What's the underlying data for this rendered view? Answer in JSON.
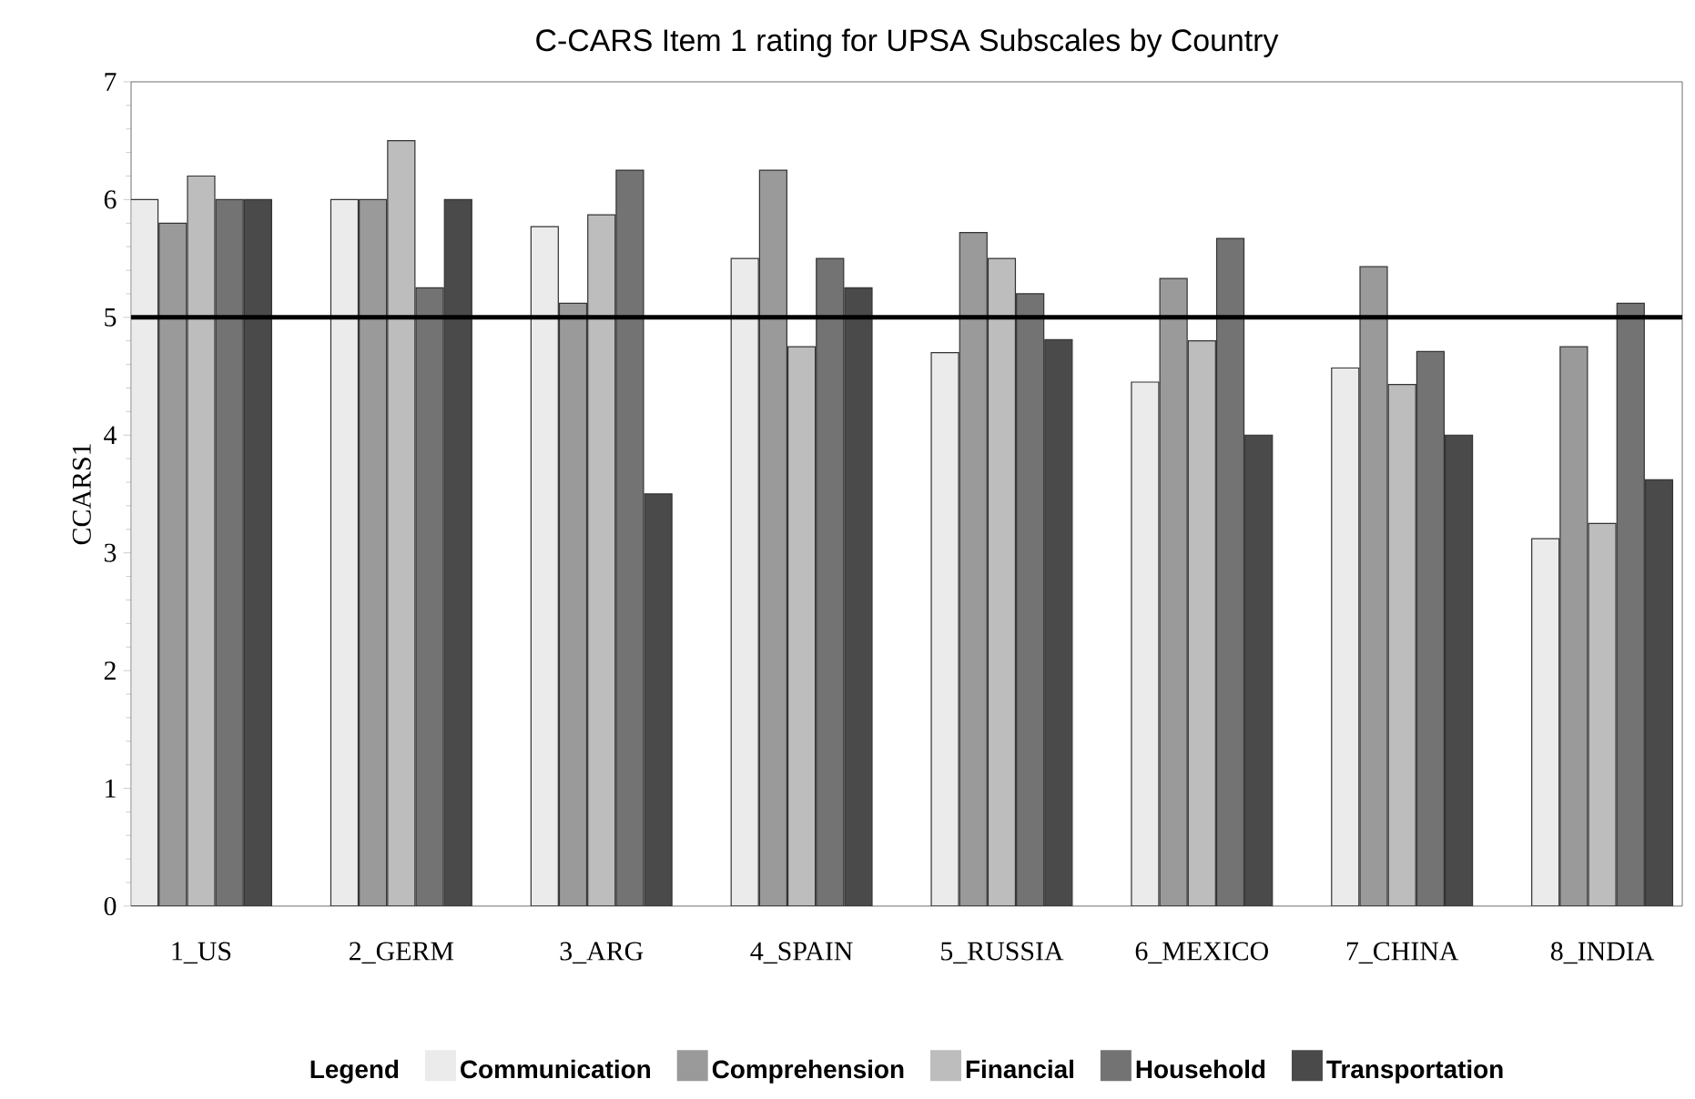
{
  "chart_data": {
    "type": "bar",
    "title": "C-CARS Item 1 rating for UPSA Subscales by Country",
    "ylabel": "CCARS1",
    "legend_title": "Legend",
    "legend": "bottom",
    "categories": [
      "1_US",
      "2_GERM",
      "3_ARG",
      "4_SPAIN",
      "5_RUSSIA",
      "6_MEXICO",
      "7_CHINA",
      "8_INDIA"
    ],
    "ylim": [
      0,
      7
    ],
    "yticks": [
      0,
      1,
      2,
      3,
      4,
      5,
      6,
      7
    ],
    "ref_lines": [
      {
        "axis": "y",
        "value": 5,
        "color": "#000000"
      }
    ],
    "series": [
      {
        "name": "Communication",
        "color": "#ebebeb",
        "values": [
          6.0,
          6.0,
          5.77,
          5.5,
          4.7,
          4.45,
          4.57,
          3.12
        ]
      },
      {
        "name": "Comprehension",
        "color": "#9a9a9a",
        "values": [
          5.8,
          6.0,
          5.12,
          6.25,
          5.72,
          5.33,
          5.43,
          4.75
        ]
      },
      {
        "name": "Financial",
        "color": "#bdbdbd",
        "values": [
          6.2,
          6.5,
          5.87,
          4.75,
          5.5,
          4.8,
          4.43,
          3.25
        ]
      },
      {
        "name": "Household",
        "color": "#737373",
        "values": [
          6.0,
          5.25,
          6.25,
          5.5,
          5.2,
          5.67,
          4.71,
          5.12
        ]
      },
      {
        "name": "Transportation",
        "color": "#4a4a4a",
        "values": [
          6.0,
          6.0,
          3.5,
          5.25,
          4.81,
          4.0,
          4.0,
          3.62
        ]
      }
    ]
  }
}
